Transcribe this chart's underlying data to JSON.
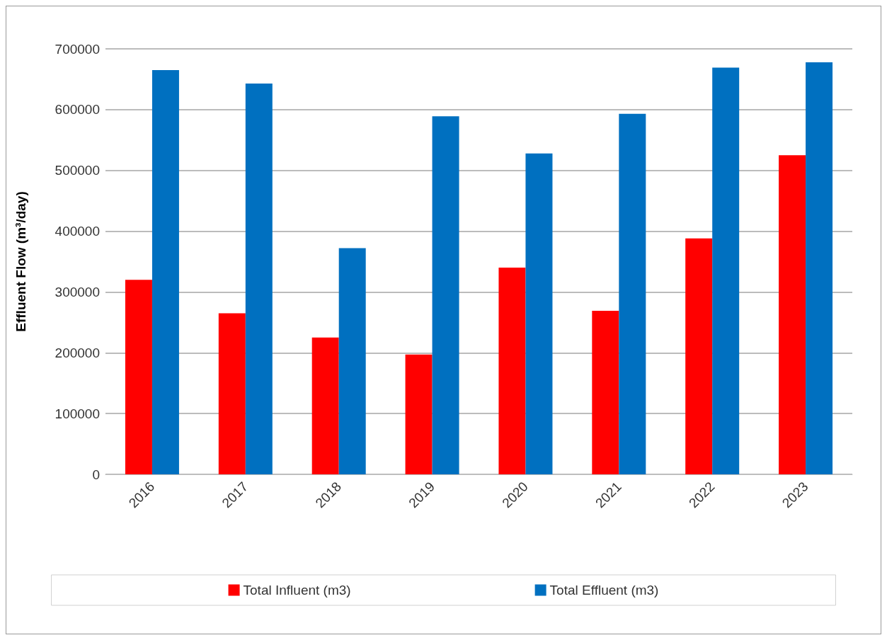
{
  "chart_data": {
    "type": "bar",
    "categories": [
      "2016",
      "2017",
      "2018",
      "2019",
      "2020",
      "2021",
      "2022",
      "2023"
    ],
    "series": [
      {
        "name": "Total Influent (m3)",
        "color": "#ff0000",
        "values": [
          320000,
          265000,
          225000,
          197000,
          340000,
          269000,
          388000,
          525000
        ]
      },
      {
        "name": "Total Effluent (m3)",
        "color": "#0070c0",
        "values": [
          665000,
          643000,
          372000,
          589000,
          528000,
          593000,
          669000,
          678000
        ]
      }
    ],
    "ylabel": "Effluent Flow (m³/day)",
    "ylim": [
      0,
      700000
    ],
    "yticks": [
      0,
      100000,
      200000,
      300000,
      400000,
      500000,
      600000,
      700000
    ],
    "grid": "y",
    "legend": "bottom"
  }
}
